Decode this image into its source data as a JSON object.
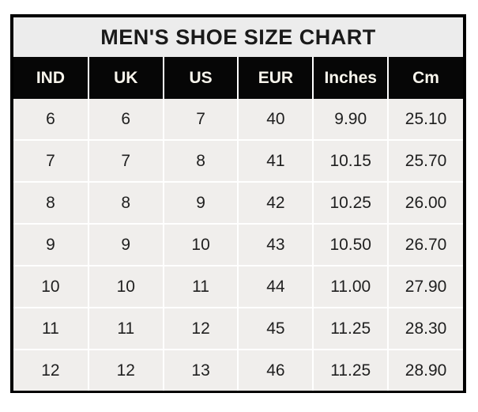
{
  "title": "MEN'S SHOE SIZE CHART",
  "chart_data": {
    "type": "table",
    "title": "MEN'S SHOE SIZE CHART",
    "columns": [
      "IND",
      "UK",
      "US",
      "EUR",
      "Inches",
      "Cm"
    ],
    "rows": [
      [
        "6",
        "6",
        "7",
        "40",
        "9.90",
        "25.10"
      ],
      [
        "7",
        "7",
        "8",
        "41",
        "10.15",
        "25.70"
      ],
      [
        "8",
        "8",
        "9",
        "42",
        "10.25",
        "26.00"
      ],
      [
        "9",
        "9",
        "10",
        "43",
        "10.50",
        "26.70"
      ],
      [
        "10",
        "10",
        "11",
        "44",
        "11.00",
        "27.90"
      ],
      [
        "11",
        "11",
        "12",
        "45",
        "11.25",
        "28.30"
      ],
      [
        "12",
        "12",
        "13",
        "46",
        "11.25",
        "28.90"
      ]
    ]
  },
  "colors": {
    "page_background": "#ffffff",
    "outer_border": "#000000",
    "title_background": "#ececec",
    "title_text": "#1a1a1a",
    "header_background": "#060606",
    "header_text": "#f8f5ec",
    "cell_background": "#f0eeec",
    "cell_text": "#1f1f1f",
    "gridline": "#ffffff"
  }
}
